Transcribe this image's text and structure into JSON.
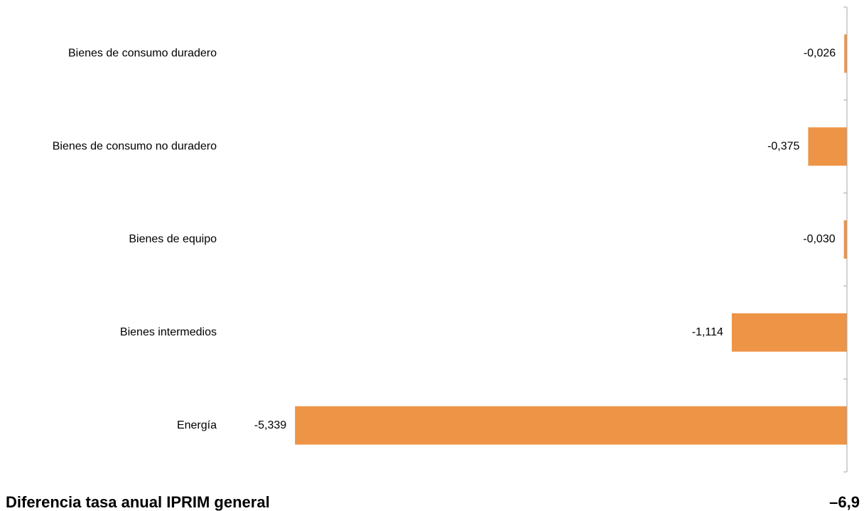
{
  "chart_data": {
    "type": "bar",
    "orientation": "horizontal",
    "categories": [
      "Bienes de consumo duradero",
      "Bienes de consumo no duradero",
      "Bienes de equipo",
      "Bienes intermedios",
      "Energía"
    ],
    "values": [
      -0.026,
      -0.375,
      -0.03,
      -1.114,
      -5.339
    ],
    "value_labels": [
      "-0,026",
      "-0,375",
      "-0,030",
      "-1,114",
      "-5,339"
    ],
    "bar_color": "#ED9446",
    "xlim": [
      -6.9,
      0
    ],
    "grid": false,
    "legend": "none"
  },
  "footer": {
    "label": "Diferencia tasa anual IPRIM general",
    "total": "–6,9"
  }
}
